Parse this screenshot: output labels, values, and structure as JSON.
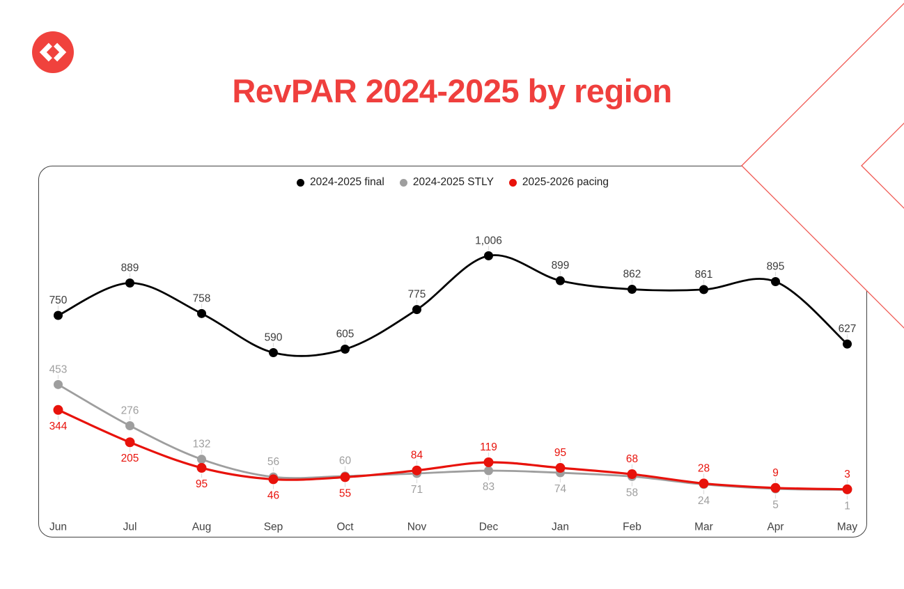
{
  "title": {
    "text": "RevPAR 2024-2025 by region",
    "color": "#EF3F3D"
  },
  "logo": {
    "icon": "code-chevrons-icon",
    "bg_color": "#F0423D",
    "glyph_color": "#FFFFFF"
  },
  "decoration": {
    "name": "double-chevron-outline",
    "color": "#F0554F"
  },
  "frame": {
    "border_color": "#424242"
  },
  "chart_data": {
    "type": "line",
    "title": "RevPAR 2024-2025 by region",
    "categories": [
      "Jun",
      "Jul",
      "Aug",
      "Sep",
      "Oct",
      "Nov",
      "Dec",
      "Jan",
      "Feb",
      "Mar",
      "Apr",
      "May"
    ],
    "series": [
      {
        "name": "2024-2025 final",
        "color": "#000000",
        "label_color": "#3C3C3C",
        "values": [
          750,
          889,
          758,
          590,
          605,
          775,
          1006,
          899,
          862,
          861,
          895,
          627
        ],
        "label_side": [
          "above",
          "above",
          "above",
          "above",
          "above",
          "above",
          "above",
          "above",
          "above",
          "above",
          "above",
          "above"
        ]
      },
      {
        "name": "2024-2025 STLY",
        "color": "#9E9E9E",
        "label_color": "#9E9E9E",
        "values": [
          453,
          276,
          132,
          56,
          60,
          71,
          83,
          74,
          58,
          24,
          5,
          1
        ],
        "label_side": [
          "above",
          "above",
          "above",
          "above",
          "above",
          "below",
          "below",
          "below",
          "below",
          "below",
          "below",
          "below"
        ]
      },
      {
        "name": "2025-2026 pacing",
        "color": "#E8120B",
        "label_color": "#E8120B",
        "values": [
          344,
          205,
          95,
          46,
          55,
          84,
          119,
          95,
          68,
          28,
          9,
          3
        ],
        "label_side": [
          "below",
          "below",
          "below",
          "below",
          "below",
          "above",
          "above",
          "above",
          "above",
          "above",
          "above",
          "above"
        ]
      }
    ],
    "xlabel": "",
    "ylabel": "",
    "ylim": [
      0,
      1100
    ],
    "grid": false,
    "y_axis_visible": false,
    "legend_position": "top-center",
    "value_label_format": "thousands-comma",
    "x_axis_label_color": "#424242",
    "leader_line_color": "#DDDDDD"
  }
}
